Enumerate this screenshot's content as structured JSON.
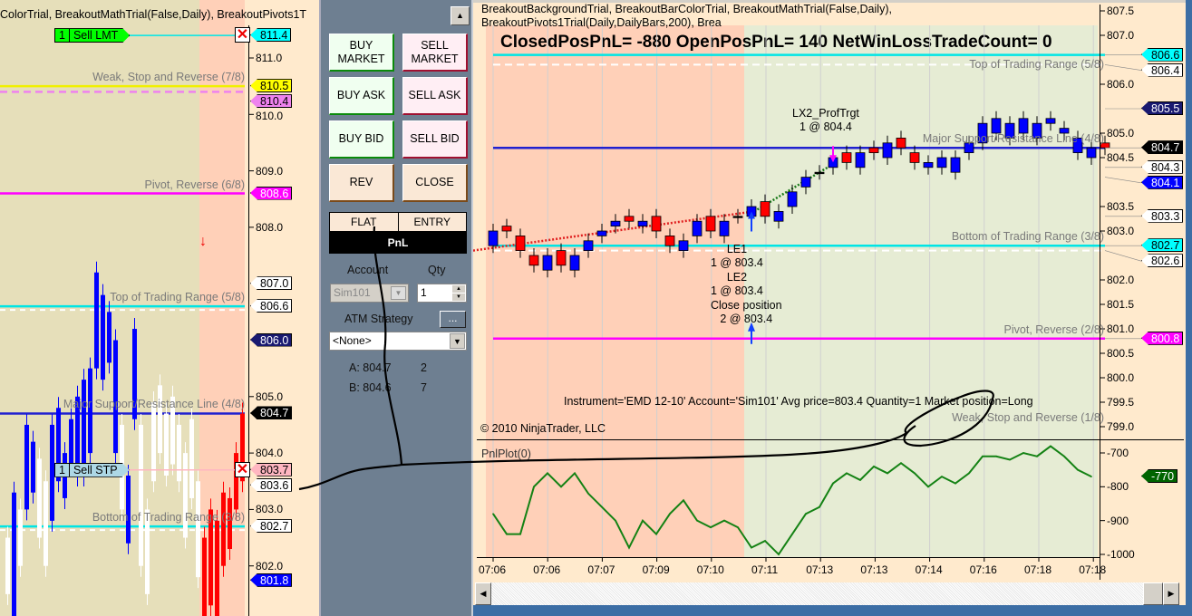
{
  "colors": {
    "up_bar": "#0000ff",
    "down_bar": "#ff0000",
    "neutral_bar": "#ffffff",
    "pnl_line": "#148214",
    "bg_salmon": "#ffd0b8",
    "bg_tan": "#e6dfba",
    "bg_green": "#e6ecd4",
    "panel": "#6e7f91"
  },
  "left_chart": {
    "header": "ColorTrial,  BreakoutMathTrial(False,Daily),  BreakoutPivots1T",
    "axis_ticks": [
      "811.0",
      "810.0",
      "809.0",
      "808.0",
      "805.0",
      "804.0",
      "803.0",
      "802.0"
    ],
    "levels": [
      {
        "price": 810.5,
        "color": "#f0f000",
        "dashed": false,
        "label": "Weak, Stop and Reverse (7/8)"
      },
      {
        "price": 810.4,
        "color": "#ee82ee",
        "dashed": true,
        "label": ""
      },
      {
        "price": 808.6,
        "color": "#ff00ff",
        "dashed": false,
        "label": "Pivot, Reverse (6/8)"
      },
      {
        "price": 806.6,
        "color": "#00e5e5",
        "dashed": false,
        "label": "Top of Trading Range (5/8)"
      },
      {
        "price": 804.7,
        "color": "#2020d0",
        "dashed": false,
        "label": "Major Support/Resistance Line (4/8)"
      },
      {
        "price": 802.7,
        "color": "#00e5e5",
        "dashed": false,
        "label": "Bottom of Trading Range (3/8)"
      }
    ],
    "price_tags": [
      {
        "label": "811.4",
        "bg": "#00ffff",
        "fg": "#000"
      },
      {
        "label": "810.5",
        "bg": "#ffff00",
        "fg": "#000"
      },
      {
        "label": "810.4",
        "bg": "#ee82ee",
        "fg": "#000"
      },
      {
        "label": "808.6",
        "bg": "#ff00ff",
        "fg": "#fff"
      },
      {
        "label": "807.0",
        "bg": "#ffffff",
        "fg": "#000"
      },
      {
        "label": "806.6",
        "bg": "#ffffff",
        "fg": "#000"
      },
      {
        "label": "806.0",
        "bg": "#191970",
        "fg": "#fff"
      },
      {
        "label": "804.7",
        "bg": "#000000",
        "fg": "#fff"
      },
      {
        "label": "803.6",
        "bg": "#ffffff",
        "fg": "#000"
      },
      {
        "label": "803.7",
        "bg": "#ffb6c1",
        "fg": "#000"
      },
      {
        "label": "802.7",
        "bg": "#ffffff",
        "fg": "#000"
      },
      {
        "label": "801.8",
        "bg": "#0000ff",
        "fg": "#fff"
      }
    ],
    "orders": [
      {
        "qty": "1",
        "label": "Sell LMT",
        "price": 811.4,
        "bg": "#00ff00",
        "line": "#00e5e5"
      },
      {
        "qty": "1",
        "label": "Sell STP",
        "price": 803.7,
        "bg": "#add8e6",
        "line": "#ffb6c1"
      }
    ],
    "candles": [
      [
        802.5,
        801.5,
        "w"
      ],
      [
        803.3,
        801.0,
        "b"
      ],
      [
        803.0,
        802.0,
        "w"
      ],
      [
        804.5,
        803.0,
        "b"
      ],
      [
        804.2,
        803.3,
        "b"
      ],
      [
        803.9,
        802.5,
        "w"
      ],
      [
        803.5,
        802.0,
        "w"
      ],
      [
        804.5,
        802.8,
        "b"
      ],
      [
        804.8,
        803.5,
        "b"
      ],
      [
        804.0,
        803.2,
        "b"
      ],
      [
        804.6,
        803.8,
        "b"
      ],
      [
        805.0,
        803.6,
        "b"
      ],
      [
        805.3,
        803.6,
        "b"
      ],
      [
        805.5,
        804.0,
        "b"
      ],
      [
        807.2,
        805.5,
        "b"
      ],
      [
        806.8,
        805.3,
        "b"
      ],
      [
        806.5,
        805.6,
        "b"
      ],
      [
        806.0,
        804.0,
        "b"
      ],
      [
        804.5,
        803.0,
        "w"
      ],
      [
        803.6,
        802.4,
        "b"
      ],
      [
        806.2,
        804.6,
        "b"
      ],
      [
        804.5,
        802.0,
        "w"
      ],
      [
        803.0,
        801.5,
        "w"
      ],
      [
        804.9,
        803.5,
        "w"
      ],
      [
        805.2,
        804.0,
        "w"
      ],
      [
        804.7,
        803.6,
        "w"
      ],
      [
        805.0,
        803.8,
        "w"
      ],
      [
        804.5,
        803.5,
        "w"
      ],
      [
        804.0,
        802.5,
        "w"
      ],
      [
        804.6,
        803.2,
        "w"
      ],
      [
        803.5,
        801.8,
        "w"
      ],
      [
        802.5,
        801.0,
        "r"
      ],
      [
        803.0,
        801.3,
        "r"
      ],
      [
        802.8,
        801.0,
        "r"
      ],
      [
        803.3,
        802.0,
        "r"
      ],
      [
        803.2,
        802.3,
        "r"
      ],
      [
        804.0,
        803.0,
        "r"
      ],
      [
        804.7,
        803.5,
        "r"
      ]
    ]
  },
  "order_panel": {
    "buy_market": "BUY MARKET",
    "sell_market": "SELL MARKET",
    "buy_ask": "BUY ASK",
    "sell_ask": "SELL ASK",
    "buy_bid": "BUY BID",
    "sell_bid": "SELL BID",
    "rev": "REV",
    "close": "CLOSE",
    "flat": "FLAT",
    "entry": "ENTRY",
    "pnl": "PnL",
    "account_label": "Account",
    "qty_label": "Qty",
    "account_value": "Sim101",
    "qty_value": "1",
    "atm_label": "ATM Strategy",
    "atm_button": "...",
    "atm_value": "<None>",
    "ask": "A: 804.7",
    "ask_size": "2",
    "bid": "B: 804.6",
    "bid_size": "7"
  },
  "right_chart": {
    "header": "BreakoutBackgroundTrial,  BreakoutBarColorTrial,  BreakoutMathTrial(False,Daily),  BreakoutPivots1Trial(Daily,DailyBars,200),  Brea",
    "summary": "ClosedPosPnL= -880  OpenPosPnL= 140  NetWinLossTradeCount= 0",
    "copyright": "© 2010 NinjaTrader, LLC",
    "position_info": "Instrument='EMD 12-10'  Account='Sim101'  Avg price=803.4  Quantity=1  Market position=Long",
    "axis_ticks": [
      "807.5",
      "807.0",
      "806.0",
      "805.0",
      "804.5",
      "803.5",
      "803.0",
      "802.0",
      "801.5",
      "801.0",
      "800.5",
      "800.0",
      "799.5",
      "799.0"
    ],
    "levels": [
      {
        "price": 806.6,
        "color": "#00e5e5",
        "dashed": false,
        "label": "Top of Trading Range (5/8)"
      },
      {
        "price": 806.4,
        "color": "#ffffff",
        "dashed": true,
        "label": ""
      },
      {
        "price": 804.7,
        "color": "#2020d0",
        "dashed": false,
        "label": "Major Support/Resistance Line (4/8)"
      },
      {
        "price": 802.7,
        "color": "#00e5e5",
        "dashed": false,
        "label": "Bottom of Trading Range (3/8)"
      },
      {
        "price": 802.6,
        "color": "#ffffff",
        "dashed": true,
        "label": ""
      },
      {
        "price": 800.8,
        "color": "#ff00ff",
        "dashed": false,
        "label": "Pivot, Reverse (2/8)"
      },
      {
        "price": 799.0,
        "color": "none",
        "dashed": false,
        "label": "Weak, Stop and Reverse (1/8)"
      }
    ],
    "price_tags": [
      {
        "label": "806.6",
        "bg": "#00ffff",
        "fg": "#000"
      },
      {
        "label": "806.4",
        "bg": "#ffffff",
        "fg": "#000"
      },
      {
        "label": "805.5",
        "bg": "#191970",
        "fg": "#fff"
      },
      {
        "label": "804.7",
        "bg": "#000000",
        "fg": "#fff"
      },
      {
        "label": "804.3",
        "bg": "#ffffff",
        "fg": "#000"
      },
      {
        "label": "804.1",
        "bg": "#0000ff",
        "fg": "#fff"
      },
      {
        "label": "803.3",
        "bg": "#ffffff",
        "fg": "#000"
      },
      {
        "label": "802.7",
        "bg": "#00ffff",
        "fg": "#000"
      },
      {
        "label": "802.6",
        "bg": "#ffffff",
        "fg": "#000"
      },
      {
        "label": "800.8",
        "bg": "#ff00ff",
        "fg": "#fff"
      }
    ],
    "candles": [
      [
        803.0,
        802.7,
        "b"
      ],
      [
        803.1,
        803.0,
        "r"
      ],
      [
        802.9,
        802.6,
        "r"
      ],
      [
        802.5,
        802.3,
        "r"
      ],
      [
        802.5,
        802.2,
        "b"
      ],
      [
        802.6,
        802.3,
        "r"
      ],
      [
        802.5,
        802.2,
        "b"
      ],
      [
        802.8,
        802.6,
        "b"
      ],
      [
        803.0,
        802.9,
        "b"
      ],
      [
        803.2,
        803.1,
        "b"
      ],
      [
        803.3,
        803.2,
        "r"
      ],
      [
        803.2,
        803.1,
        "b"
      ],
      [
        803.3,
        803.0,
        "r"
      ],
      [
        802.9,
        802.7,
        "r"
      ],
      [
        802.8,
        802.6,
        "b"
      ],
      [
        803.2,
        802.9,
        "b"
      ],
      [
        803.3,
        803.0,
        "r"
      ],
      [
        803.2,
        802.9,
        "b"
      ],
      [
        803.3,
        803.3,
        "k"
      ],
      [
        803.5,
        803.3,
        "b"
      ],
      [
        803.6,
        803.3,
        "r"
      ],
      [
        803.4,
        803.2,
        "b"
      ],
      [
        803.8,
        803.5,
        "b"
      ],
      [
        804.1,
        803.9,
        "b"
      ],
      [
        804.2,
        804.2,
        "k"
      ],
      [
        804.5,
        804.3,
        "b"
      ],
      [
        804.6,
        804.4,
        "r"
      ],
      [
        804.6,
        804.3,
        "b"
      ],
      [
        804.7,
        804.6,
        "r"
      ],
      [
        804.8,
        804.5,
        "b"
      ],
      [
        804.9,
        804.7,
        "r"
      ],
      [
        804.6,
        804.4,
        "r"
      ],
      [
        804.4,
        804.3,
        "b"
      ],
      [
        804.5,
        804.3,
        "b"
      ],
      [
        804.5,
        804.2,
        "b"
      ],
      [
        804.8,
        804.6,
        "b"
      ],
      [
        805.2,
        804.8,
        "b"
      ],
      [
        805.3,
        805.0,
        "b"
      ],
      [
        805.2,
        804.9,
        "b"
      ],
      [
        805.3,
        805.0,
        "b"
      ],
      [
        805.2,
        804.9,
        "b"
      ],
      [
        805.3,
        805.2,
        "b"
      ],
      [
        805.1,
        805.0,
        "b"
      ],
      [
        804.9,
        804.6,
        "b"
      ],
      [
        804.7,
        804.5,
        "b"
      ],
      [
        804.8,
        804.7,
        "r"
      ]
    ],
    "annotations": [
      {
        "lines": [
          "LX2_ProfTrgt",
          "1 @ 804.4"
        ]
      },
      {
        "lines": [
          "LE1",
          "1 @ 803.4"
        ]
      },
      {
        "lines": [
          "LE2",
          "1 @ 803.4"
        ]
      },
      {
        "lines": [
          "Close position",
          "2 @ 803.4"
        ]
      }
    ],
    "pnl_panel": {
      "title": "PnlPlot(0)",
      "last_tag": "-770",
      "axis_ticks": [
        "-700",
        "-800",
        "-900",
        "-1000"
      ]
    },
    "x_ticks": [
      "07:06",
      "07:06",
      "07:07",
      "07:09",
      "07:10",
      "07:11",
      "07:13",
      "07:13",
      "07:14",
      "07:16",
      "07:18",
      "07:18"
    ]
  },
  "chart_data": {
    "type": "line",
    "title": "PnlPlot(0)",
    "ylim": [
      -1000,
      -700
    ],
    "x_tick_labels": [
      "07:06",
      "07:06",
      "07:07",
      "07:09",
      "07:10",
      "07:11",
      "07:13",
      "07:13",
      "07:14",
      "07:16",
      "07:18",
      "07:18"
    ],
    "series": [
      {
        "values": [
          -880,
          -940,
          -940,
          -800,
          -760,
          -800,
          -760,
          -820,
          -860,
          -900,
          -980,
          -900,
          -940,
          -880,
          -840,
          -900,
          -920,
          -900,
          -920,
          -980,
          -960,
          -1000,
          -940,
          -880,
          -860,
          -790,
          -760,
          -780,
          -740,
          -760,
          -730,
          -760,
          -800,
          -770,
          -790,
          -760,
          -710,
          -710,
          -720,
          -700,
          -710,
          -680,
          -710,
          -750,
          -770
        ]
      }
    ]
  }
}
